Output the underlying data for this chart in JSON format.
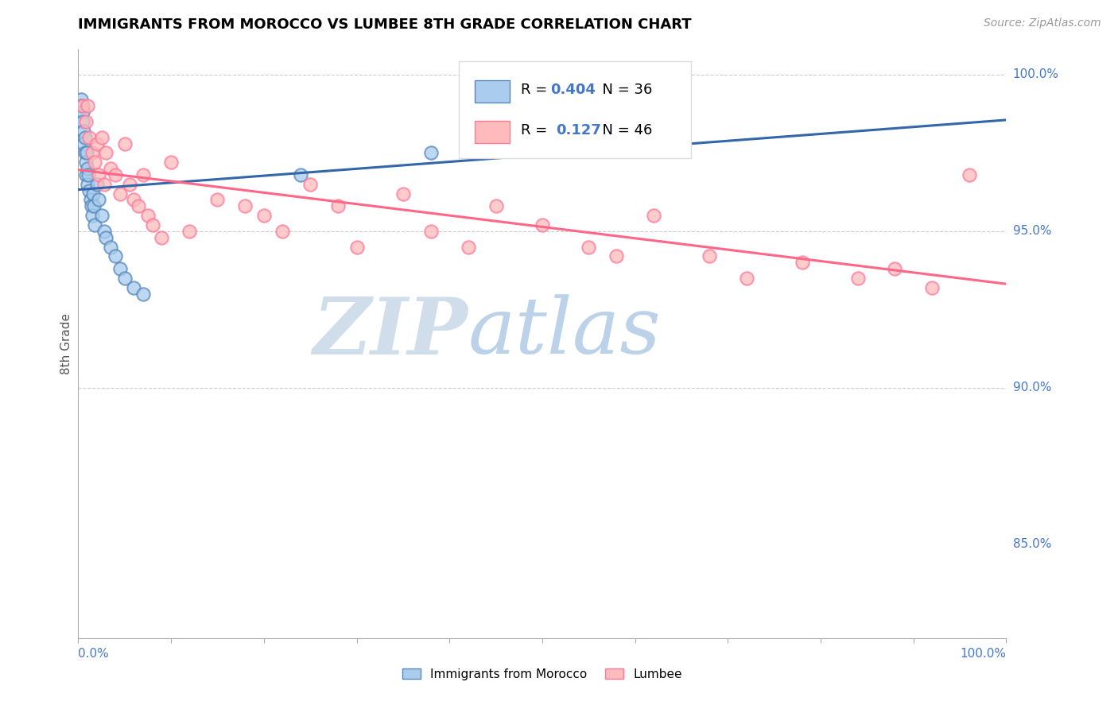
{
  "title": "IMMIGRANTS FROM MOROCCO VS LUMBEE 8TH GRADE CORRELATION CHART",
  "source": "Source: ZipAtlas.com",
  "ylabel": "8th Grade",
  "xmin": 0.0,
  "xmax": 1.0,
  "ymin": 0.875,
  "ymax": 1.008,
  "yticks": [
    0.85,
    0.9,
    0.95,
    1.0
  ],
  "ytick_labels": [
    "85.0%",
    "90.0%",
    "95.0%",
    "100.0%"
  ],
  "color_blue": "#AACCEE",
  "color_pink": "#FFBBBB",
  "color_blue_edge": "#5588BB",
  "color_pink_edge": "#FF7799",
  "color_blue_line": "#3366AA",
  "color_pink_line": "#FF6688",
  "color_r_value": "#4477CC",
  "color_grid": "#CCCCCC",
  "color_watermark_zip": "#C8D8E8",
  "color_watermark_atlas": "#99BBDD",
  "r_blue": "0.404",
  "n_blue": "36",
  "r_pink": "0.127",
  "n_pink": "46",
  "legend_label_blue": "Immigrants from Morocco",
  "legend_label_pink": "Lumbee",
  "blue_x": [
    0.002,
    0.003,
    0.004,
    0.005,
    0.005,
    0.006,
    0.006,
    0.007,
    0.007,
    0.008,
    0.008,
    0.009,
    0.01,
    0.01,
    0.011,
    0.012,
    0.013,
    0.014,
    0.015,
    0.016,
    0.017,
    0.018,
    0.02,
    0.022,
    0.025,
    0.028,
    0.03,
    0.035,
    0.04,
    0.045,
    0.05,
    0.06,
    0.07,
    0.24,
    0.38,
    0.62
  ],
  "blue_y": [
    0.99,
    0.992,
    0.99,
    0.988,
    0.985,
    0.982,
    0.978,
    0.98,
    0.975,
    0.972,
    0.968,
    0.975,
    0.97,
    0.965,
    0.968,
    0.963,
    0.96,
    0.958,
    0.955,
    0.962,
    0.958,
    0.952,
    0.965,
    0.96,
    0.955,
    0.95,
    0.948,
    0.945,
    0.942,
    0.938,
    0.935,
    0.932,
    0.93,
    0.968,
    0.975,
    0.99
  ],
  "pink_x": [
    0.005,
    0.008,
    0.01,
    0.012,
    0.015,
    0.018,
    0.02,
    0.022,
    0.025,
    0.028,
    0.03,
    0.035,
    0.04,
    0.045,
    0.05,
    0.055,
    0.06,
    0.065,
    0.07,
    0.075,
    0.08,
    0.09,
    0.1,
    0.12,
    0.15,
    0.18,
    0.2,
    0.22,
    0.25,
    0.28,
    0.3,
    0.35,
    0.38,
    0.42,
    0.45,
    0.5,
    0.55,
    0.58,
    0.62,
    0.68,
    0.72,
    0.78,
    0.84,
    0.88,
    0.92,
    0.96
  ],
  "pink_y": [
    0.99,
    0.985,
    0.99,
    0.98,
    0.975,
    0.972,
    0.978,
    0.968,
    0.98,
    0.965,
    0.975,
    0.97,
    0.968,
    0.962,
    0.978,
    0.965,
    0.96,
    0.958,
    0.968,
    0.955,
    0.952,
    0.948,
    0.972,
    0.95,
    0.96,
    0.958,
    0.955,
    0.95,
    0.965,
    0.958,
    0.945,
    0.962,
    0.95,
    0.945,
    0.958,
    0.952,
    0.945,
    0.942,
    0.955,
    0.942,
    0.935,
    0.94,
    0.935,
    0.938,
    0.932,
    0.968
  ]
}
